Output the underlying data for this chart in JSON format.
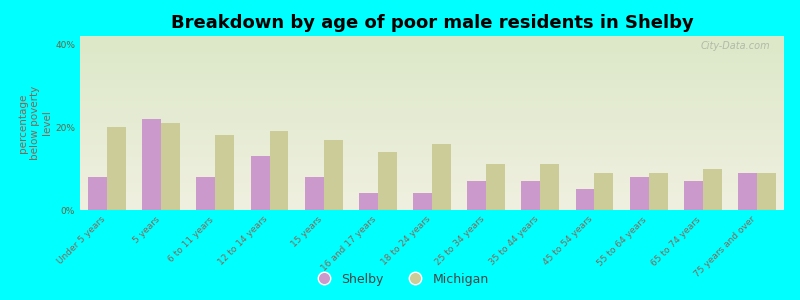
{
  "title": "Breakdown by age of poor male residents in Shelby",
  "ylabel": "percentage\nbelow poverty\nlevel",
  "categories": [
    "Under 5 years",
    "5 years",
    "6 to 11 years",
    "12 to 14 years",
    "15 years",
    "16 and 17 years",
    "18 to 24 years",
    "25 to 34 years",
    "35 to 44 years",
    "45 to 54 years",
    "55 to 64 years",
    "65 to 74 years",
    "75 years and over"
  ],
  "shelby_values": [
    8,
    22,
    8,
    13,
    8,
    4,
    4,
    7,
    7,
    5,
    8,
    7,
    9
  ],
  "michigan_values": [
    20,
    21,
    18,
    19,
    17,
    14,
    16,
    11,
    11,
    9,
    9,
    10,
    9
  ],
  "shelby_color": "#cc99cc",
  "michigan_color": "#cccc99",
  "background_color": "#00ffff",
  "plot_bg_top": "#dce8c8",
  "plot_bg_bottom": "#f0f0e0",
  "ylim": [
    0,
    42
  ],
  "yticks": [
    0,
    20,
    40
  ],
  "ytick_labels": [
    "0%",
    "20%",
    "40%"
  ],
  "bar_width": 0.35,
  "title_fontsize": 13,
  "axis_label_fontsize": 7.5,
  "tick_fontsize": 6.5,
  "legend_fontsize": 9,
  "watermark": "City-Data.com"
}
